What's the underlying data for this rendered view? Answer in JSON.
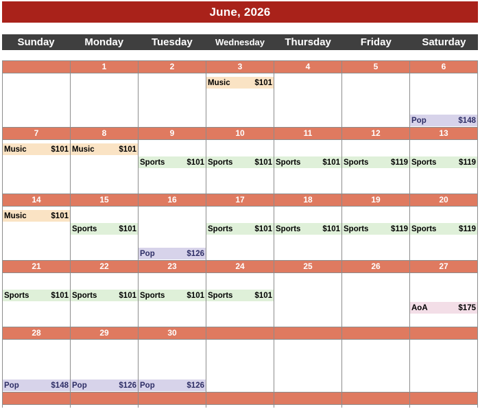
{
  "title": "June, 2026",
  "day_headers": [
    "Sunday",
    "Monday",
    "Tuesday",
    "Wednesday",
    "Thursday",
    "Friday",
    "Saturday"
  ],
  "colors": {
    "title_bar": "#A9221A",
    "day_header_bar": "#3F3F3F",
    "date_row": "#DF7A60",
    "grid_border": "#8C8C8C",
    "music_bg": "#FAE3C4",
    "sports_bg": "#DFF0D9",
    "pop_bg": "#D7D3EA",
    "pop_text": "#2E2E66",
    "aoa_bg": "#F3DEE7"
  },
  "weeks": [
    {
      "dates": [
        "",
        "1",
        "2",
        "3",
        "4",
        "5",
        "6"
      ],
      "events": [
        {
          "day_index": 3,
          "slot": 1,
          "type": "music",
          "label": "Music",
          "price": "$101"
        },
        {
          "day_index": 6,
          "slot": 4,
          "type": "pop",
          "label": "Pop",
          "price": "$148"
        }
      ]
    },
    {
      "dates": [
        "7",
        "8",
        "9",
        "10",
        "11",
        "12",
        "13"
      ],
      "events": [
        {
          "day_index": 0,
          "slot": 1,
          "type": "music",
          "label": "Music",
          "price": "$101"
        },
        {
          "day_index": 1,
          "slot": 1,
          "type": "music",
          "label": "Music",
          "price": "$101"
        },
        {
          "day_index": 2,
          "slot": 2,
          "type": "sports",
          "label": "Sports",
          "price": "$101"
        },
        {
          "day_index": 3,
          "slot": 2,
          "type": "sports",
          "label": "Sports",
          "price": "$101"
        },
        {
          "day_index": 4,
          "slot": 2,
          "type": "sports",
          "label": "Sports",
          "price": "$101"
        },
        {
          "day_index": 5,
          "slot": 2,
          "type": "sports",
          "label": "Sports",
          "price": "$119"
        },
        {
          "day_index": 6,
          "slot": 2,
          "type": "sports",
          "label": "Sports",
          "price": "$119"
        }
      ]
    },
    {
      "dates": [
        "14",
        "15",
        "16",
        "17",
        "18",
        "19",
        "20"
      ],
      "events": [
        {
          "day_index": 0,
          "slot": 1,
          "type": "music",
          "label": "Music",
          "price": "$101"
        },
        {
          "day_index": 1,
          "slot": 2,
          "type": "sports",
          "label": "Sports",
          "price": "$101"
        },
        {
          "day_index": 2,
          "slot": 4,
          "type": "pop",
          "label": "Pop",
          "price": "$126"
        },
        {
          "day_index": 3,
          "slot": 2,
          "type": "sports",
          "label": "Sports",
          "price": "$101"
        },
        {
          "day_index": 4,
          "slot": 2,
          "type": "sports",
          "label": "Sports",
          "price": "$101"
        },
        {
          "day_index": 5,
          "slot": 2,
          "type": "sports",
          "label": "Sports",
          "price": "$119"
        },
        {
          "day_index": 6,
          "slot": 2,
          "type": "sports",
          "label": "Sports",
          "price": "$119"
        }
      ]
    },
    {
      "dates": [
        "21",
        "22",
        "23",
        "24",
        "25",
        "26",
        "27"
      ],
      "events": [
        {
          "day_index": 0,
          "slot": 2,
          "type": "sports",
          "label": "Sports",
          "price": "$101"
        },
        {
          "day_index": 1,
          "slot": 2,
          "type": "sports",
          "label": "Sports",
          "price": "$101"
        },
        {
          "day_index": 2,
          "slot": 2,
          "type": "sports",
          "label": "Sports",
          "price": "$101"
        },
        {
          "day_index": 3,
          "slot": 2,
          "type": "sports",
          "label": "Sports",
          "price": "$101"
        },
        {
          "day_index": 6,
          "slot": 3,
          "type": "aoa",
          "label": "AoA",
          "price": "$175"
        }
      ]
    },
    {
      "dates": [
        "28",
        "29",
        "30",
        "",
        "",
        "",
        ""
      ],
      "events": [
        {
          "day_index": 0,
          "slot": 4,
          "type": "pop",
          "label": "Pop",
          "price": "$148"
        },
        {
          "day_index": 1,
          "slot": 4,
          "type": "pop",
          "label": "Pop",
          "price": "$126"
        },
        {
          "day_index": 2,
          "slot": 4,
          "type": "pop",
          "label": "Pop",
          "price": "$126"
        }
      ]
    }
  ],
  "trailing_week": {
    "dates": [
      "",
      "",
      "",
      "",
      "",
      "",
      ""
    ]
  }
}
